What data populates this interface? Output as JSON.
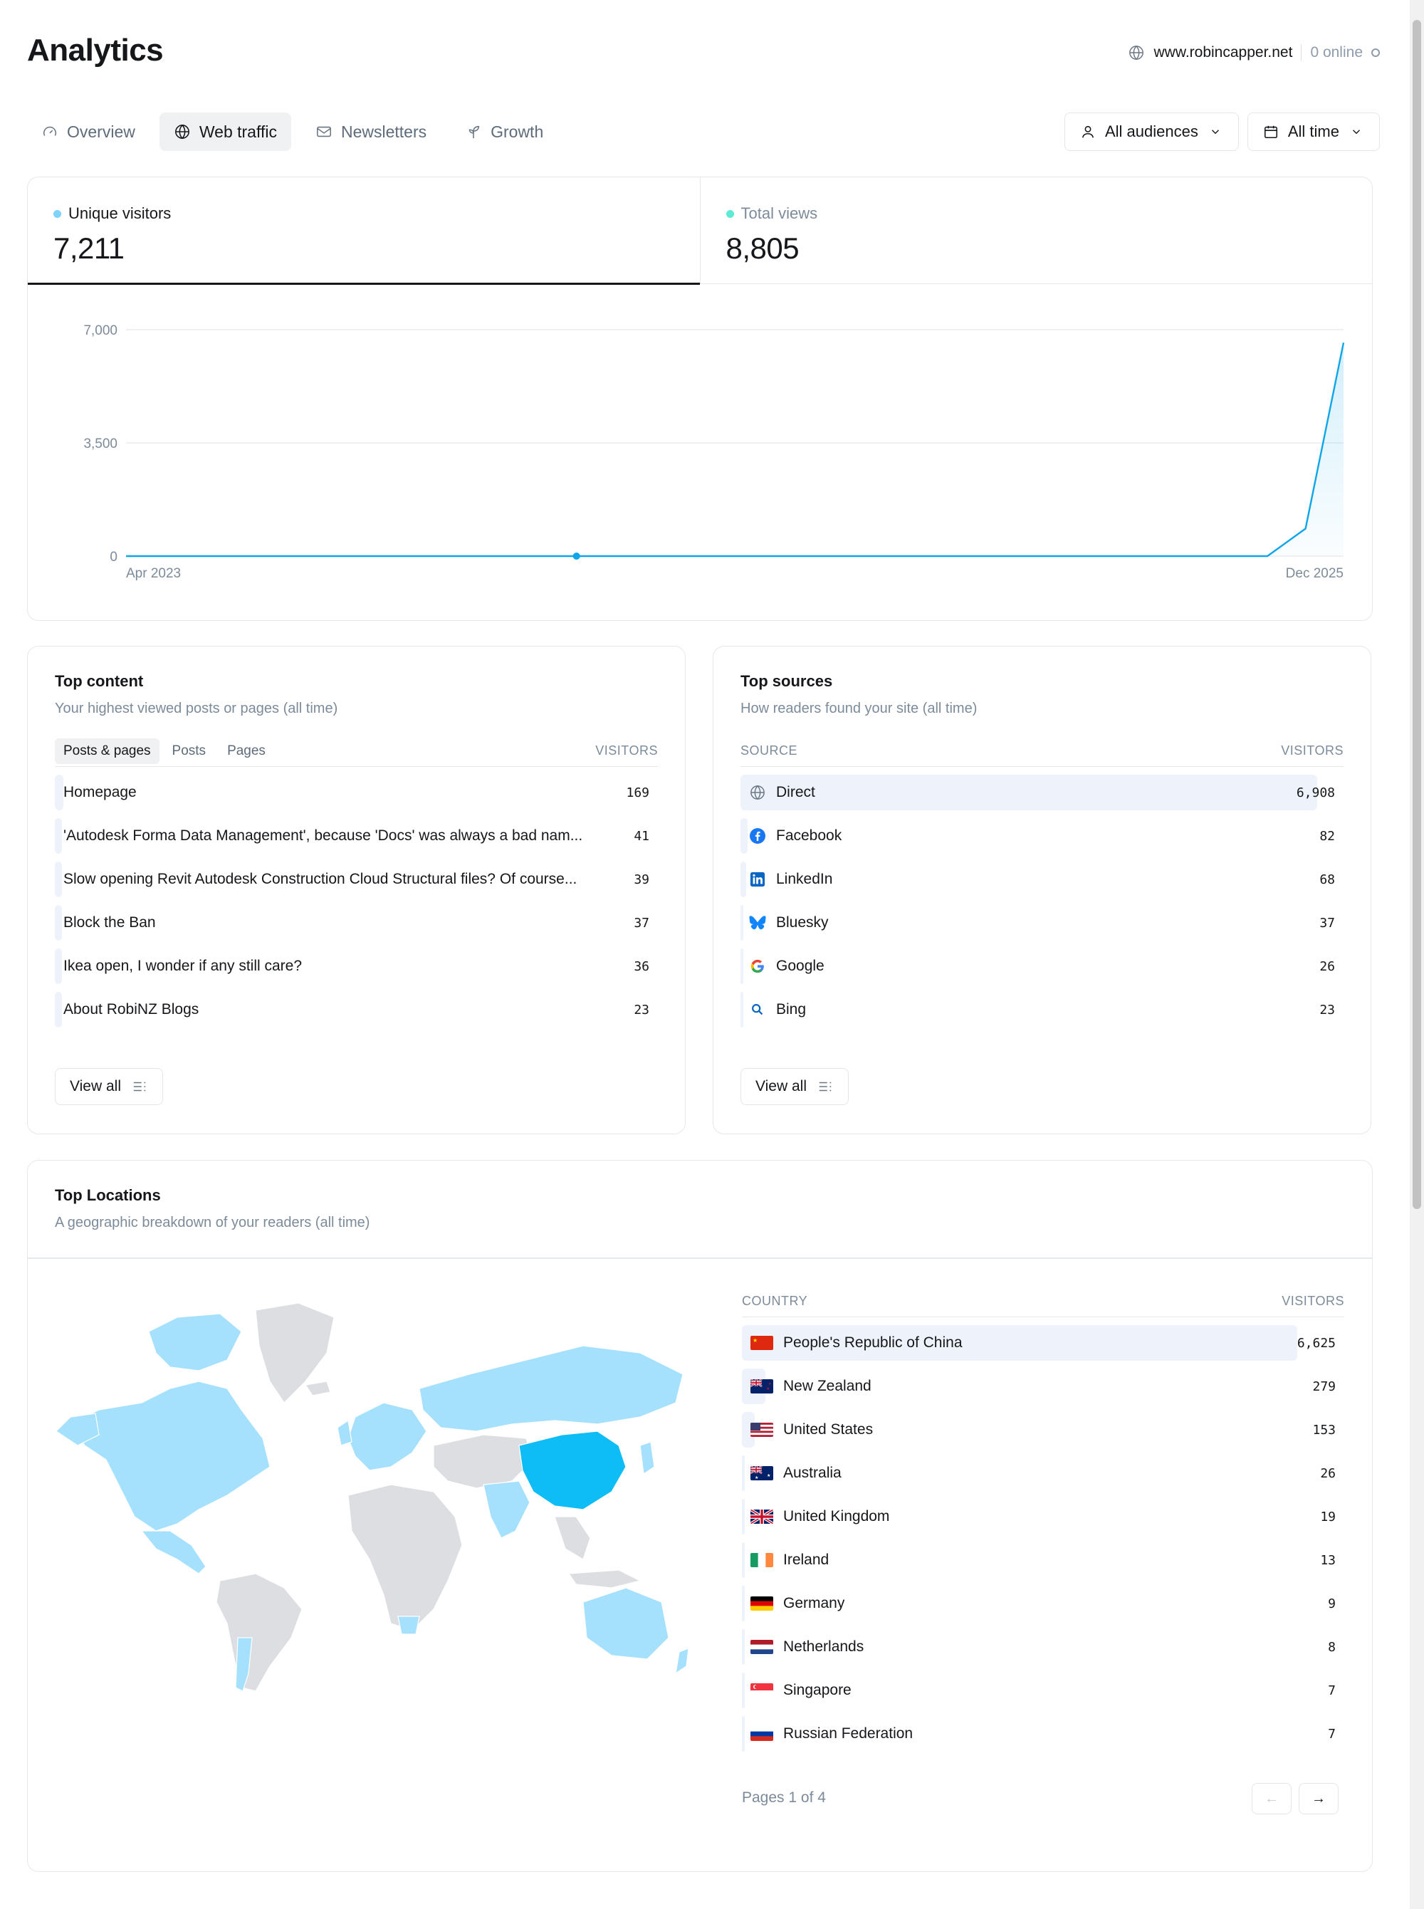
{
  "header": {
    "title": "Analytics",
    "site_url": "www.robincapper.net",
    "online": "0 online"
  },
  "tabs": [
    {
      "label": "Overview",
      "icon": "gauge-icon"
    },
    {
      "label": "Web traffic",
      "icon": "globe-icon"
    },
    {
      "label": "Newsletters",
      "icon": "mail-icon"
    },
    {
      "label": "Growth",
      "icon": "sprout-icon"
    }
  ],
  "filters": {
    "audience": "All audiences",
    "period": "All time"
  },
  "kpis": [
    {
      "label": "Unique visitors",
      "value": "7,211",
      "color": "#7dd3fc"
    },
    {
      "label": "Total views",
      "value": "8,805",
      "color": "#5eead4"
    }
  ],
  "chart_data": {
    "type": "area",
    "series": [
      {
        "values": [
          0,
          0,
          0,
          0,
          0,
          0,
          0,
          0,
          0,
          0,
          0,
          0,
          0,
          0,
          0,
          0,
          0,
          0,
          0,
          0,
          0,
          0,
          0,
          0,
          0,
          0,
          0,
          0,
          0,
          0,
          0,
          850,
          6600
        ]
      }
    ],
    "x_start": "Apr 2023",
    "x_end": "Dec 2025",
    "y_ticks": [
      "7,000",
      "3,500",
      "0"
    ],
    "ylim": [
      0,
      7000
    ],
    "color": "#0ea5e9",
    "grid": true
  },
  "top_content": {
    "title": "Top content",
    "subtitle": "Your highest viewed posts or pages (all time)",
    "tabs": [
      "Posts & pages",
      "Posts",
      "Pages"
    ],
    "col_header": "VISITORS",
    "rows": [
      {
        "name": "Homepage",
        "value": "169",
        "share": 1.0
      },
      {
        "name": "'Autodesk Forma Data Management', because 'Docs' was always a bad nam...",
        "value": "41",
        "share": 0.24
      },
      {
        "name": "Slow opening Revit Autodesk Construction Cloud Structural files? Of course...",
        "value": "39",
        "share": 0.23
      },
      {
        "name": "Block the Ban",
        "value": "37",
        "share": 0.22
      },
      {
        "name": "Ikea open, I wonder if any still care?",
        "value": "36",
        "share": 0.21
      },
      {
        "name": "About RobiNZ Blogs",
        "value": "23",
        "share": 0.14
      }
    ],
    "view_all": "View all"
  },
  "top_sources": {
    "title": "Top sources",
    "subtitle": "How readers found your site (all time)",
    "col_source": "SOURCE",
    "col_visitors": "VISITORS",
    "rows": [
      {
        "name": "Direct",
        "value": "6,908",
        "icon": "globe-icon",
        "share": 1.0
      },
      {
        "name": "Facebook",
        "value": "82",
        "icon": "facebook-icon",
        "share": 0.012
      },
      {
        "name": "LinkedIn",
        "value": "68",
        "icon": "linkedin-icon",
        "share": 0.01
      },
      {
        "name": "Bluesky",
        "value": "37",
        "icon": "bluesky-icon",
        "share": 0.005
      },
      {
        "name": "Google",
        "value": "26",
        "icon": "google-icon",
        "share": 0.004
      },
      {
        "name": "Bing",
        "value": "23",
        "icon": "bing-icon",
        "share": 0.003
      }
    ],
    "view_all": "View all"
  },
  "top_locations": {
    "title": "Top Locations",
    "subtitle": "A geographic breakdown of your readers (all time)",
    "col_country": "COUNTRY",
    "col_visitors": "VISITORS",
    "rows": [
      {
        "name": "People's Republic of China",
        "value": "6,625",
        "flag": "cn",
        "share": 1.0
      },
      {
        "name": "New Zealand",
        "value": "279",
        "flag": "nz",
        "share": 0.042
      },
      {
        "name": "United States",
        "value": "153",
        "flag": "us",
        "share": 0.023
      },
      {
        "name": "Australia",
        "value": "26",
        "flag": "au",
        "share": 0.004
      },
      {
        "name": "United Kingdom",
        "value": "19",
        "flag": "gb",
        "share": 0.003
      },
      {
        "name": "Ireland",
        "value": "13",
        "flag": "ie",
        "share": 0.002
      },
      {
        "name": "Germany",
        "value": "9",
        "flag": "de",
        "share": 0.001
      },
      {
        "name": "Netherlands",
        "value": "8",
        "flag": "nl",
        "share": 0.001
      },
      {
        "name": "Singapore",
        "value": "7",
        "flag": "sg",
        "share": 0.001
      },
      {
        "name": "Russian Federation",
        "value": "7",
        "flag": "ru",
        "share": 0.001
      }
    ],
    "pages": "Pages 1 of 4",
    "map_colors": {
      "highlight": "#0ebdf5",
      "active": "#a5e1fd",
      "inactive": "#dcdee2"
    }
  }
}
